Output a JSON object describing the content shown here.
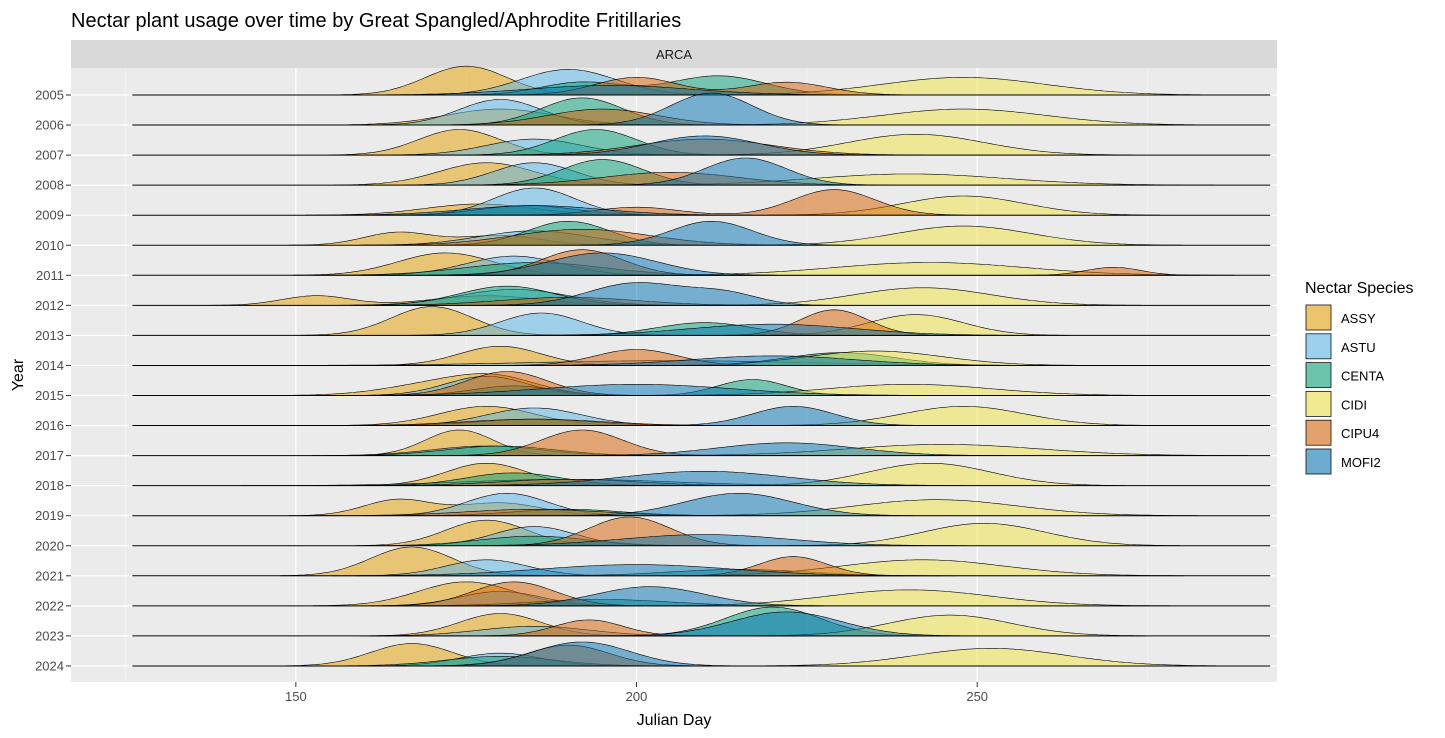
{
  "chart_data": {
    "type": "ridgeline",
    "title": "Nectar plant usage over time by Great Spangled/Aphrodite Fritillaries",
    "facet": "ARCA",
    "xlabel": "Julian Day",
    "ylabel": "Year",
    "xlim": [
      117,
      294
    ],
    "x_ticks": [
      150,
      200,
      250
    ],
    "years": [
      "2005",
      "2006",
      "2007",
      "2008",
      "2009",
      "2010",
      "2011",
      "2012",
      "2013",
      "2014",
      "2015",
      "2016",
      "2017",
      "2018",
      "2019",
      "2020",
      "2021",
      "2022",
      "2023",
      "2024"
    ],
    "baseline_range": [
      126,
      293
    ],
    "legend": {
      "title": "Nectar Species",
      "placement": "right"
    },
    "colors": {
      "ASSY": "#E69F00",
      "ASTU": "#56B4E9",
      "CENTA": "#009E73",
      "CIDI": "#F0E442",
      "CIPU4": "#D55E00",
      "MOFI2": "#0072B2"
    },
    "series": [
      {
        "name": "ASSY",
        "peaks": [
          [
            [
              175,
              6,
              0.9
            ]
          ],
          [
            [
              180,
              8,
              0.5
            ]
          ],
          [
            [
              174,
              6,
              0.8
            ]
          ],
          [
            [
              178,
              7,
              0.7
            ]
          ],
          [
            [
              177,
              8,
              0.35
            ]
          ],
          [
            [
              165,
              5,
              0.4
            ],
            [
              180,
              6,
              0.3
            ]
          ],
          [
            [
              172,
              7,
              0.7
            ]
          ],
          [
            [
              153,
              5,
              0.3
            ],
            [
              178,
              8,
              0.3
            ]
          ],
          [
            [
              170,
              6,
              0.9
            ]
          ],
          [
            [
              180,
              6,
              0.6
            ]
          ],
          [
            [
              172,
              8,
              0.4
            ],
            [
              180,
              6,
              0.4
            ]
          ],
          [
            [
              178,
              7,
              0.6
            ]
          ],
          [
            [
              174,
              5,
              0.8
            ]
          ],
          [
            [
              178,
              6,
              0.7
            ]
          ],
          [
            [
              165,
              5,
              0.5
            ],
            [
              180,
              6,
              0.4
            ]
          ],
          [
            [
              178,
              6,
              0.8
            ]
          ],
          [
            [
              167,
              6,
              0.9
            ]
          ],
          [
            [
              175,
              7,
              0.75
            ]
          ],
          [
            [
              180,
              6,
              0.7
            ]
          ],
          [
            [
              167,
              6,
              0.7
            ]
          ]
        ]
      },
      {
        "name": "ASTU",
        "peaks": [
          [
            [
              190,
              7,
              0.8
            ]
          ],
          [
            [
              180,
              6,
              0.8
            ]
          ],
          [
            [
              185,
              7,
              0.5
            ]
          ],
          [
            [
              185,
              6,
              0.7
            ]
          ],
          [
            [
              185,
              6,
              0.85
            ]
          ],
          [
            [
              185,
              8,
              0.45
            ]
          ],
          [
            [
              182,
              7,
              0.6
            ]
          ],
          [
            [
              182,
              8,
              0.5
            ]
          ],
          [
            [
              186,
              6,
              0.7
            ]
          ],
          [
            [
              205,
              20,
              0.15
            ]
          ],
          [
            [
              178,
              6,
              0.6
            ]
          ],
          [
            [
              185,
              7,
              0.55
            ]
          ],
          [
            [
              178,
              8,
              0.3
            ]
          ],
          [
            [
              190,
              15,
              0.2
            ]
          ],
          [
            [
              181,
              6,
              0.7
            ]
          ],
          [
            [
              185,
              6,
              0.6
            ]
          ],
          [
            [
              178,
              6,
              0.5
            ]
          ],
          [
            [
              180,
              6,
              0.45
            ]
          ],
          [
            [
              185,
              8,
              0.3
            ]
          ],
          [
            [
              180,
              6,
              0.4
            ]
          ]
        ]
      },
      {
        "name": "CENTA",
        "peaks": [
          [
            [
              212,
              7,
              0.6
            ],
            [
              192,
              6,
              0.4
            ]
          ],
          [
            [
              192,
              6,
              0.85
            ]
          ],
          [
            [
              194,
              6,
              0.8
            ]
          ],
          [
            [
              195,
              6,
              0.8
            ]
          ],
          [
            [
              184,
              7,
              0.3
            ]
          ],
          [
            [
              190,
              6,
              0.75
            ]
          ],
          [
            [
              185,
              10,
              0.4
            ]
          ],
          [
            [
              181,
              7,
              0.6
            ]
          ],
          [
            [
              210,
              7,
              0.4
            ]
          ],
          [
            [
              230,
              8,
              0.4
            ]
          ],
          [
            [
              217,
              5,
              0.5
            ],
            [
              182,
              6,
              0.3
            ]
          ],
          [
            [
              185,
              8,
              0.2
            ]
          ],
          [
            [
              180,
              8,
              0.3
            ]
          ],
          [
            [
              182,
              7,
              0.4
            ]
          ],
          [
            [
              190,
              8,
              0.2
            ]
          ],
          [
            [
              185,
              8,
              0.3
            ]
          ],
          [
            [
              215,
              10,
              0.2
            ]
          ],
          [
            [
              195,
              10,
              0.2
            ]
          ],
          [
            [
              220,
              7,
              0.9
            ]
          ],
          [
            [
              180,
              8,
              0.3
            ]
          ]
        ]
      },
      {
        "name": "CIDI",
        "peaks": [
          [
            [
              248,
              12,
              0.55
            ]
          ],
          [
            [
              248,
              12,
              0.5
            ]
          ],
          [
            [
              241,
              10,
              0.65
            ]
          ],
          [
            [
              240,
              14,
              0.35
            ]
          ],
          [
            [
              248,
              9,
              0.6
            ]
          ],
          [
            [
              248,
              10,
              0.6
            ]
          ],
          [
            [
              243,
              14,
              0.4
            ]
          ],
          [
            [
              242,
              10,
              0.55
            ]
          ],
          [
            [
              241,
              7,
              0.65
            ]
          ],
          [
            [
              235,
              10,
              0.45
            ]
          ],
          [
            [
              240,
              12,
              0.35
            ]
          ],
          [
            [
              248,
              9,
              0.6
            ]
          ],
          [
            [
              245,
              14,
              0.35
            ]
          ],
          [
            [
              243,
              9,
              0.7
            ]
          ],
          [
            [
              244,
              12,
              0.5
            ]
          ],
          [
            [
              251,
              9,
              0.7
            ]
          ],
          [
            [
              242,
              12,
              0.5
            ]
          ],
          [
            [
              240,
              12,
              0.5
            ]
          ],
          [
            [
              246,
              9,
              0.65
            ]
          ],
          [
            [
              252,
              11,
              0.55
            ]
          ]
        ]
      },
      {
        "name": "CIPU4",
        "peaks": [
          [
            [
              200,
              6,
              0.55
            ],
            [
              222,
              6,
              0.4
            ]
          ],
          [
            [
              195,
              8,
              0.5
            ]
          ],
          [
            [
              210,
              10,
              0.5
            ]
          ],
          [
            [
              205,
              10,
              0.4
            ]
          ],
          [
            [
              229,
              6,
              0.8
            ],
            [
              200,
              6,
              0.25
            ]
          ],
          [
            [
              192,
              10,
              0.5
            ]
          ],
          [
            [
              192,
              6,
              0.8
            ],
            [
              270,
              4,
              0.25
            ]
          ],
          [
            [
              190,
              10,
              0.25
            ]
          ],
          [
            [
              229,
              5,
              0.8
            ]
          ],
          [
            [
              200,
              6,
              0.5
            ]
          ],
          [
            [
              181,
              6,
              0.75
            ]
          ],
          [
            [
              185,
              10,
              0.2
            ]
          ],
          [
            [
              192,
              6,
              0.8
            ]
          ],
          [
            [
              190,
              10,
              0.2
            ]
          ],
          [
            [
              185,
              10,
              0.2
            ]
          ],
          [
            [
              199,
              6,
              0.9
            ]
          ],
          [
            [
              223,
              5,
              0.6
            ]
          ],
          [
            [
              182,
              6,
              0.75
            ]
          ],
          [
            [
              193,
              5,
              0.5
            ]
          ],
          [
            [
              190,
              6,
              0.65
            ]
          ]
        ]
      },
      {
        "name": "MOFI2",
        "peaks": [
          [
            [
              196,
              12,
              0.3
            ]
          ],
          [
            [
              211,
              6,
              1.0
            ]
          ],
          [
            [
              210,
              8,
              0.6
            ]
          ],
          [
            [
              216,
              6,
              0.85
            ]
          ],
          [
            [
              185,
              10,
              0.3
            ]
          ],
          [
            [
              211,
              6,
              0.75
            ]
          ],
          [
            [
              195,
              8,
              0.7
            ]
          ],
          [
            [
              200,
              7,
              0.7
            ],
            [
              213,
              5,
              0.35
            ]
          ],
          [
            [
              220,
              12,
              0.35
            ]
          ],
          [
            [
              220,
              12,
              0.3
            ]
          ],
          [
            [
              200,
              14,
              0.35
            ]
          ],
          [
            [
              223,
              6,
              0.6
            ]
          ],
          [
            [
              222,
              10,
              0.4
            ]
          ],
          [
            [
              210,
              12,
              0.45
            ]
          ],
          [
            [
              215,
              8,
              0.7
            ]
          ],
          [
            [
              210,
              12,
              0.35
            ]
          ],
          [
            [
              200,
              14,
              0.35
            ]
          ],
          [
            [
              202,
              8,
              0.6
            ]
          ],
          [
            [
              222,
              8,
              0.75
            ]
          ],
          [
            [
              192,
              7,
              0.75
            ]
          ]
        ]
      }
    ]
  }
}
